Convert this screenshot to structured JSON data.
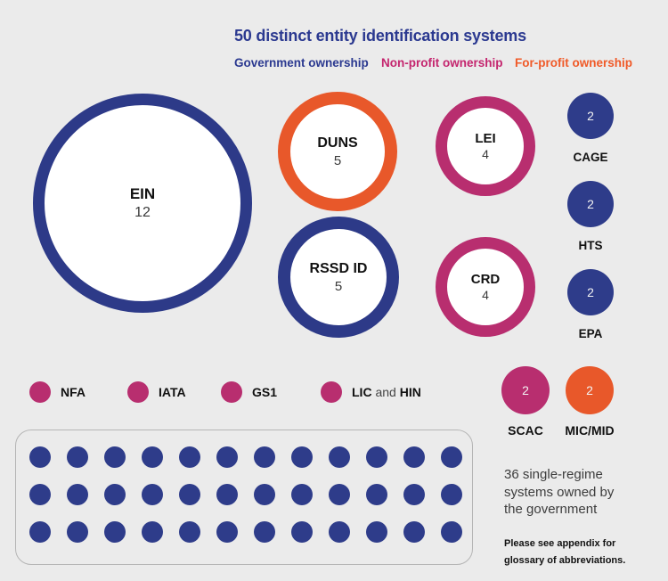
{
  "title": "50 distinct entity identification systems",
  "legend": {
    "government": "Government ownership",
    "nonprofit": "Non-profit ownership",
    "forprofit": "For-profit ownership"
  },
  "colors": {
    "government_blue": "#2b3990",
    "circle_blue": "#2e3c8a",
    "nonprofit_magenta": "#b82e6f",
    "legend_magenta": "#c4256e",
    "forprofit_orange": "#e8582a",
    "legend_orange": "#f05a28",
    "background": "#ebebeb"
  },
  "bubbles": [
    {
      "name": "EIN",
      "count": 12,
      "ownership": "government"
    },
    {
      "name": "DUNS",
      "count": 5,
      "ownership": "for-profit"
    },
    {
      "name": "RSSD ID",
      "count": 5,
      "ownership": "government"
    },
    {
      "name": "LEI",
      "count": 4,
      "ownership": "non-profit"
    },
    {
      "name": "CRD",
      "count": 4,
      "ownership": "non-profit"
    }
  ],
  "solids": [
    {
      "name": "CAGE",
      "count": 2,
      "ownership": "government"
    },
    {
      "name": "HTS",
      "count": 2,
      "ownership": "government"
    },
    {
      "name": "EPA",
      "count": 2,
      "ownership": "government"
    },
    {
      "name": "SCAC",
      "count": 2,
      "ownership": "non-profit"
    },
    {
      "name": "MIC/MID",
      "count": 2,
      "ownership": "for-profit"
    }
  ],
  "minis": [
    {
      "label": "NFA",
      "ownership": "non-profit"
    },
    {
      "label": "IATA",
      "ownership": "non-profit"
    },
    {
      "label": "GS1",
      "ownership": "non-profit"
    },
    {
      "parts": [
        "LIC",
        " and ",
        "HIN"
      ],
      "ownership": "non-profit"
    }
  ],
  "grid": {
    "rows": 3,
    "cols": 12,
    "total": 36
  },
  "grid_caption": "36 single-regime systems owned by the government",
  "footnote": "Please see appendix for glossary of abbreviations.",
  "chart_data": {
    "type": "bubble",
    "title": "50 distinct entity identification systems",
    "legend_entries": [
      "Government ownership",
      "Non-profit ownership",
      "For-profit ownership"
    ],
    "legend_position": "top",
    "series": [
      {
        "name": "EIN",
        "value": 12,
        "ownership": "government"
      },
      {
        "name": "DUNS",
        "value": 5,
        "ownership": "for-profit"
      },
      {
        "name": "RSSD ID",
        "value": 5,
        "ownership": "government"
      },
      {
        "name": "LEI",
        "value": 4,
        "ownership": "non-profit"
      },
      {
        "name": "CRD",
        "value": 4,
        "ownership": "non-profit"
      },
      {
        "name": "CAGE",
        "value": 2,
        "ownership": "government"
      },
      {
        "name": "HTS",
        "value": 2,
        "ownership": "government"
      },
      {
        "name": "EPA",
        "value": 2,
        "ownership": "government"
      },
      {
        "name": "NFA",
        "value": null,
        "ownership": "non-profit"
      },
      {
        "name": "IATA",
        "value": null,
        "ownership": "non-profit"
      },
      {
        "name": "GS1",
        "value": null,
        "ownership": "non-profit"
      },
      {
        "name": "LIC and HIN",
        "value": null,
        "ownership": "non-profit"
      },
      {
        "name": "SCAC",
        "value": 2,
        "ownership": "non-profit"
      },
      {
        "name": "MIC/MID",
        "value": 2,
        "ownership": "for-profit"
      }
    ],
    "annotations": [
      "36 single-regime systems owned by the government",
      "Please see appendix for glossary of abbreviations."
    ]
  }
}
